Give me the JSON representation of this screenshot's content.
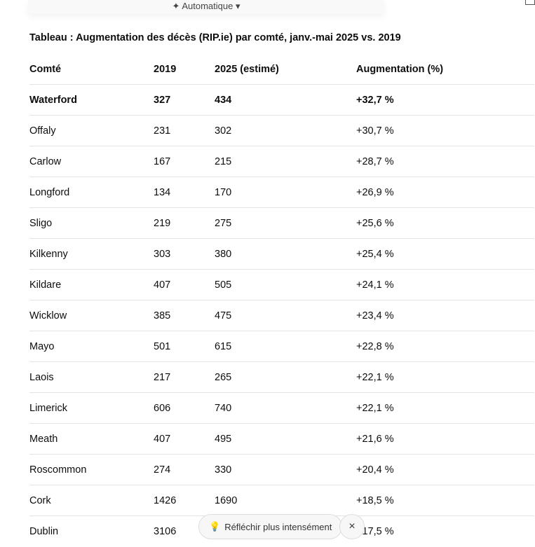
{
  "topbar": {
    "mode_label": "Automatique"
  },
  "table": {
    "title": "Tableau : Augmentation des décès (RIP.ie) par comté, janv.-mai 2025 vs. 2019",
    "headers": [
      "Comté",
      "2019",
      "2025 (estimé)",
      "Augmentation (%)"
    ],
    "rows": [
      [
        "Waterford",
        "327",
        "434",
        "+32,7 %"
      ],
      [
        "Offaly",
        "231",
        "302",
        "+30,7 %"
      ],
      [
        "Carlow",
        "167",
        "215",
        "+28,7 %"
      ],
      [
        "Longford",
        "134",
        "170",
        "+26,9 %"
      ],
      [
        "Sligo",
        "219",
        "275",
        "+25,6 %"
      ],
      [
        "Kilkenny",
        "303",
        "380",
        "+25,4 %"
      ],
      [
        "Kildare",
        "407",
        "505",
        "+24,1 %"
      ],
      [
        "Wicklow",
        "385",
        "475",
        "+23,4 %"
      ],
      [
        "Mayo",
        "501",
        "615",
        "+22,8 %"
      ],
      [
        "Laois",
        "217",
        "265",
        "+22,1 %"
      ],
      [
        "Limerick",
        "606",
        "740",
        "+22,1 %"
      ],
      [
        "Meath",
        "407",
        "495",
        "+21,6 %"
      ],
      [
        "Roscommon",
        "274",
        "330",
        "+20,4 %"
      ],
      [
        "Cork",
        "1426",
        "1690",
        "+18,5 %"
      ],
      [
        "Dublin",
        "3106",
        "",
        "+17,5 %"
      ]
    ]
  },
  "think_button": {
    "label": "Réfléchir plus intensément",
    "icon": "lightbulb-icon"
  },
  "close_button": {
    "label": "×"
  }
}
